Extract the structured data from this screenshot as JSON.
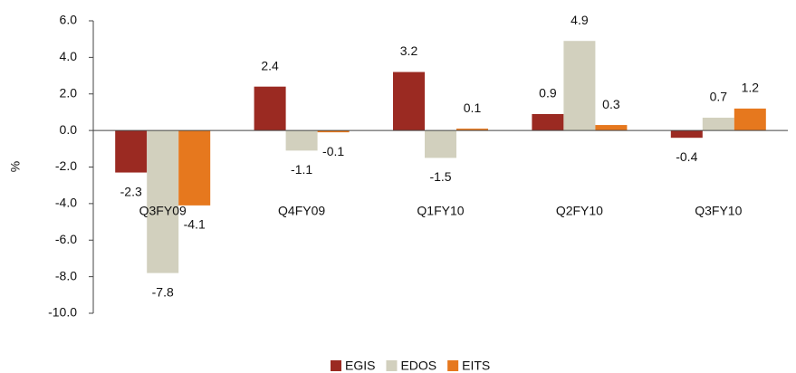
{
  "chart_data": {
    "type": "bar",
    "y_label": "%",
    "categories": [
      "Q3FY09",
      "Q4FY09",
      "Q1FY10",
      "Q2FY10",
      "Q3FY10"
    ],
    "series": [
      {
        "name": "EGIS",
        "color": "#9b2a22",
        "values": [
          -2.3,
          2.4,
          3.2,
          0.9,
          -0.4
        ]
      },
      {
        "name": "EDOS",
        "color": "#d2d0be",
        "values": [
          -7.8,
          -1.1,
          -1.5,
          4.9,
          0.7
        ]
      },
      {
        "name": "EITS",
        "color": "#e6781e",
        "values": [
          -4.1,
          -0.1,
          0.1,
          0.3,
          1.2
        ]
      }
    ],
    "ylim": [
      -10,
      6
    ],
    "yticks": [
      {
        "value": -10,
        "label": "-10.0"
      },
      {
        "value": -8,
        "label": "-8.0"
      },
      {
        "value": -6,
        "label": "-6.0"
      },
      {
        "value": -4,
        "label": "-4.0"
      },
      {
        "value": -2,
        "label": "-2.0"
      },
      {
        "value": 0,
        "label": "0.0"
      },
      {
        "value": 2,
        "label": "2.0"
      },
      {
        "value": 4,
        "label": "4.0"
      },
      {
        "value": 6,
        "label": "6.0"
      }
    ],
    "legend": "bottom"
  }
}
